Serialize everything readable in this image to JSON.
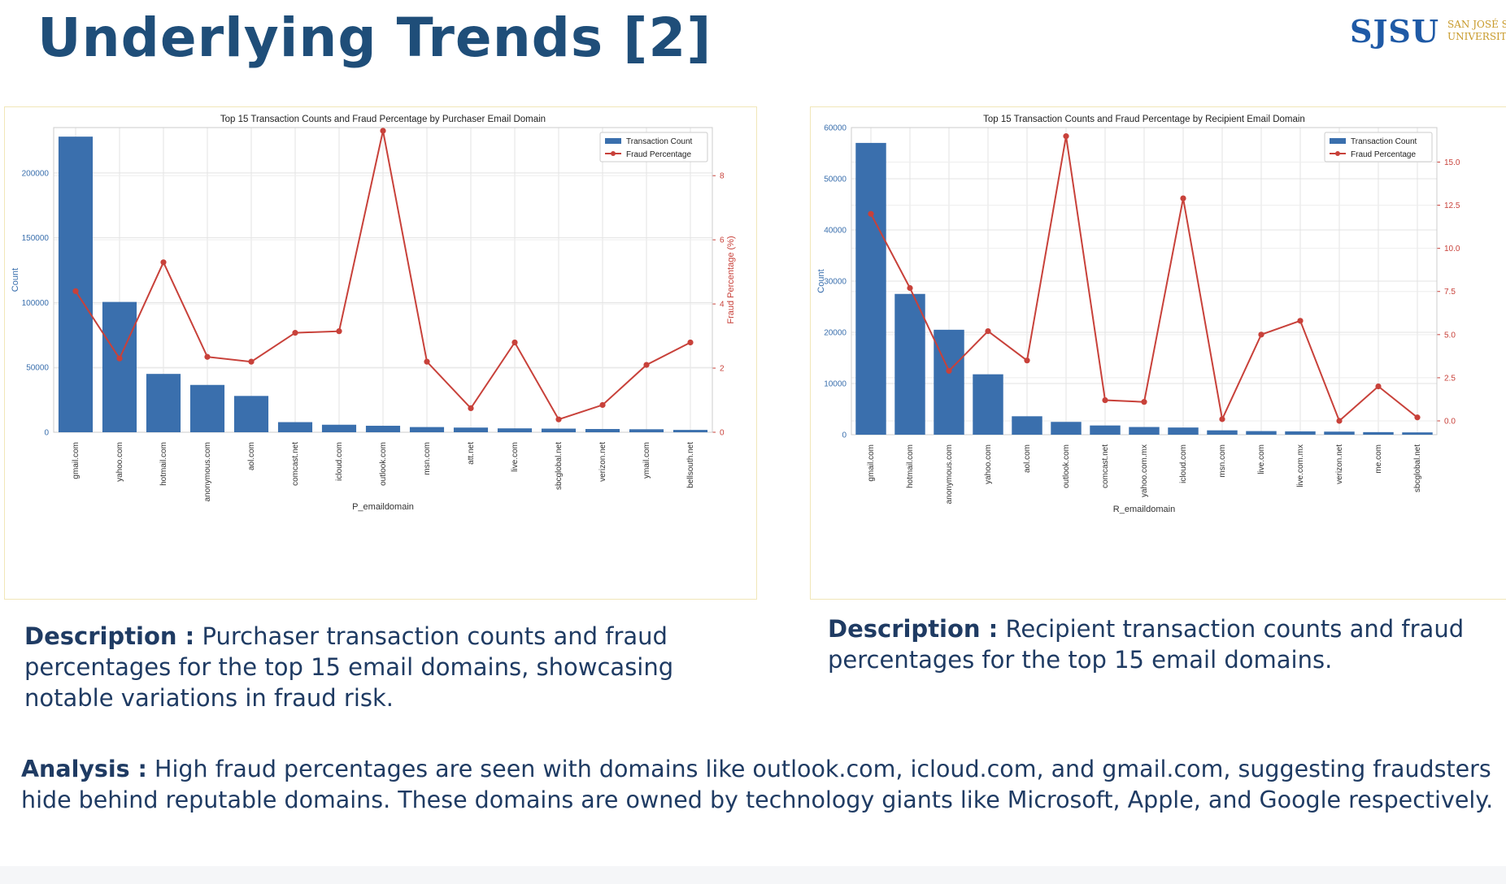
{
  "slide": {
    "title": "Underlying Trends [2]"
  },
  "logo": {
    "mark": "SJSU",
    "subtitle": "SAN JOSÉ STATE\nUNIVERSITY"
  },
  "colors": {
    "bar": "#3a6fad",
    "line": "#c8413a",
    "title": "#1f4e79",
    "text": "#1f3b63"
  },
  "chart_data": [
    {
      "type": "bar",
      "title": "Top 15 Transaction Counts and Fraud Percentage by Purchaser Email Domain",
      "xlabel": "P_emaildomain",
      "ylabel": "Count",
      "y2label": "Fraud Percentage (%)",
      "ylim": [
        0,
        235000
      ],
      "y2lim": [
        0,
        9.5
      ],
      "yticks": [
        0,
        50000,
        100000,
        150000,
        200000
      ],
      "y2ticks": [
        0,
        2,
        4,
        6,
        8
      ],
      "grid": true,
      "legend_position": "top-right",
      "legend": [
        "Transaction Count",
        "Fraud Percentage"
      ],
      "categories": [
        "gmail.com",
        "yahoo.com",
        "hotmail.com",
        "anonymous.com",
        "aol.com",
        "comcast.net",
        "icloud.com",
        "outlook.com",
        "msn.com",
        "att.net",
        "live.com",
        "sbcglobal.net",
        "verizon.net",
        "ymail.com",
        "bellsouth.net"
      ],
      "series": [
        {
          "name": "Transaction Count",
          "type": "bar",
          "values": [
            228000,
            100500,
            45000,
            36500,
            28000,
            7800,
            5800,
            5000,
            4000,
            3600,
            3000,
            2800,
            2500,
            2300,
            1800
          ]
        },
        {
          "name": "Fraud Percentage",
          "type": "line",
          "values": [
            4.4,
            2.3,
            5.3,
            2.35,
            2.2,
            3.1,
            3.15,
            9.4,
            2.2,
            0.75,
            2.8,
            0.4,
            0.85,
            2.1,
            2.8
          ]
        }
      ]
    },
    {
      "type": "bar",
      "title": "Top 15 Transaction Counts and Fraud Percentage by Recipient Email Domain",
      "xlabel": "R_emaildomain",
      "ylabel": "Count",
      "y2label": "",
      "ylim": [
        0,
        60000
      ],
      "y2lim": [
        -0.8,
        17
      ],
      "yticks": [
        0,
        10000,
        20000,
        30000,
        40000,
        50000,
        60000
      ],
      "y2ticks": [
        "0.0",
        "2.5",
        "5.0",
        "7.5",
        "10.0",
        "12.5",
        "15.0"
      ],
      "grid": true,
      "legend_position": "top-right",
      "legend": [
        "Transaction Count",
        "Fraud Percentage"
      ],
      "categories": [
        "gmail.com",
        "hotmail.com",
        "anonymous.com",
        "yahoo.com",
        "aol.com",
        "outlook.com",
        "comcast.net",
        "yahoo.com.mx",
        "icloud.com",
        "msn.com",
        "live.com",
        "live.com.mx",
        "verizon.net",
        "me.com",
        "sbcglobal.net"
      ],
      "series": [
        {
          "name": "Transaction Count",
          "type": "bar",
          "values": [
            57000,
            27500,
            20500,
            11800,
            3600,
            2500,
            1800,
            1500,
            1400,
            850,
            700,
            650,
            600,
            500,
            450
          ]
        },
        {
          "name": "Fraud Percentage",
          "type": "line",
          "values": [
            12.0,
            7.7,
            2.9,
            5.2,
            3.5,
            16.5,
            1.2,
            1.1,
            12.9,
            0.1,
            5.0,
            5.8,
            0.0,
            2.0,
            0.2
          ]
        }
      ]
    }
  ],
  "descriptions": {
    "left_label": "Description :",
    "left_text": " Purchaser transaction counts and fraud percentages for the top 15 email domains, showcasing notable variations in fraud risk.",
    "right_label": "Description :",
    "right_text": " Recipient transaction counts and fraud percentages for the top 15 email domains."
  },
  "analysis": {
    "label": "Analysis :",
    "text": " High fraud percentages are seen with domains like outlook.com, icloud.com, and gmail.com, suggesting fraudsters hide behind reputable domains. These domains are owned by technology giants like Microsoft, Apple, and Google respectively."
  }
}
